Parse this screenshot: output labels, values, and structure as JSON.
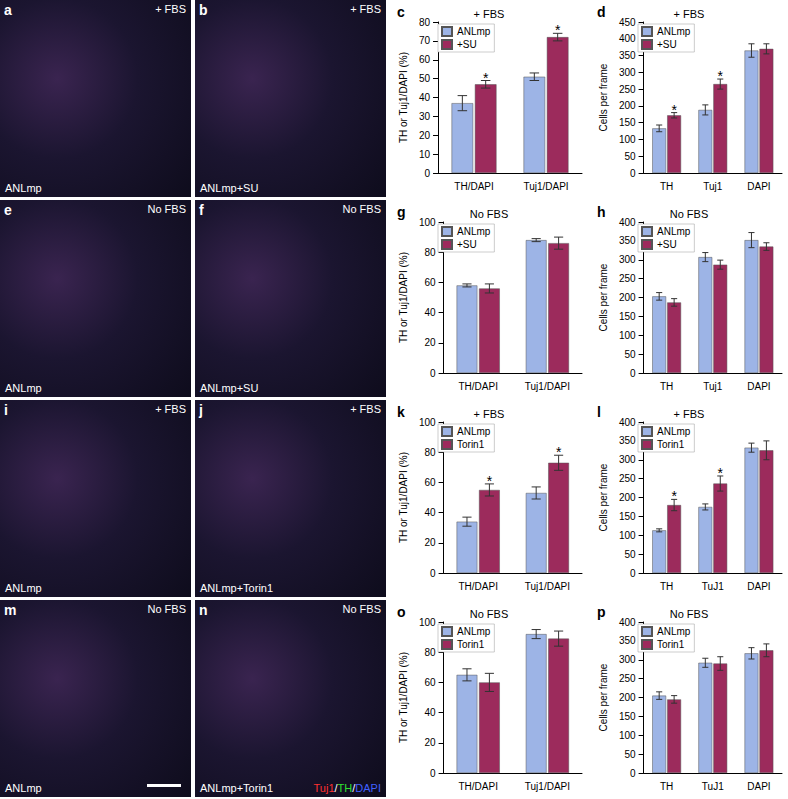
{
  "images": [
    {
      "panel": "a",
      "condition": "+ FBS",
      "label": "ANLmp"
    },
    {
      "panel": "b",
      "condition": "+ FBS",
      "label": "ANLmp+SU"
    },
    {
      "panel": "e",
      "condition": "No FBS",
      "label": "ANLmp"
    },
    {
      "panel": "f",
      "condition": "No FBS",
      "label": "ANLmp+SU"
    },
    {
      "panel": "i",
      "condition": "+ FBS",
      "label": "ANLmp"
    },
    {
      "panel": "j",
      "condition": "+ FBS",
      "label": "ANLmp+Torin1"
    },
    {
      "panel": "m",
      "condition": "No FBS",
      "label": "ANLmp",
      "scale_bar": true
    },
    {
      "panel": "n",
      "condition": "No FBS",
      "label": "ANLmp+Torin1",
      "stain_legend": [
        {
          "text": "Tuj1",
          "color": "#ff3030"
        },
        {
          "text": "/",
          "color": "#ffffff"
        },
        {
          "text": "TH",
          "color": "#30e030"
        },
        {
          "text": "/",
          "color": "#ffffff"
        },
        {
          "text": "DAPI",
          "color": "#4060ff"
        }
      ]
    }
  ],
  "chart_data": [
    {
      "panel": "c",
      "type": "bar",
      "title": "+ FBS",
      "y_label": "TH or Tuj1/DAPI (%)",
      "categories": [
        "TH/DAPI",
        "Tuj1/DAPI"
      ],
      "series": [
        {
          "name": "ANLmp",
          "color": "#9db4e6",
          "values": [
            37,
            51
          ],
          "errors": [
            4,
            2
          ],
          "annotations": [
            null,
            null
          ]
        },
        {
          "name": "+SU",
          "color": "#9c2b5c",
          "values": [
            47,
            72
          ],
          "errors": [
            2,
            2
          ],
          "annotations": [
            "*",
            "*"
          ]
        }
      ],
      "ylim": [
        0,
        80
      ],
      "yticks": [
        0,
        10,
        20,
        30,
        40,
        50,
        60,
        70,
        80
      ],
      "legend": "upper left",
      "grid": false
    },
    {
      "panel": "d",
      "type": "bar",
      "title": "+ FBS",
      "y_label": "Cells per frame",
      "categories": [
        "TH",
        "Tuj1",
        "DAPI"
      ],
      "series": [
        {
          "name": "ANLmp",
          "color": "#9db4e6",
          "values": [
            133,
            188,
            365
          ],
          "errors": [
            10,
            15,
            20
          ],
          "annotations": [
            null,
            null,
            null
          ]
        },
        {
          "name": "+SU",
          "color": "#9c2b5c",
          "values": [
            172,
            265,
            370
          ],
          "errors": [
            8,
            15,
            15
          ],
          "annotations": [
            "*",
            "*",
            null
          ]
        }
      ],
      "ylim": [
        0,
        450
      ],
      "yticks": [
        0,
        50,
        100,
        150,
        200,
        250,
        300,
        350,
        400,
        450
      ],
      "legend": "upper left",
      "grid": false
    },
    {
      "panel": "g",
      "type": "bar",
      "title": "No FBS",
      "y_label": "TH or Tuj1/DAPI (%)",
      "categories": [
        "TH/DAPI",
        "Tuj1/DAPI"
      ],
      "series": [
        {
          "name": "ANLmp",
          "color": "#9db4e6",
          "values": [
            58,
            88
          ],
          "errors": [
            1,
            1
          ],
          "annotations": [
            null,
            null
          ]
        },
        {
          "name": "+SU",
          "color": "#9c2b5c",
          "values": [
            56,
            86
          ],
          "errors": [
            3,
            4
          ],
          "annotations": [
            null,
            null
          ]
        }
      ],
      "ylim": [
        0,
        100
      ],
      "yticks": [
        0,
        20,
        40,
        60,
        80,
        100
      ],
      "legend": "upper left",
      "grid": false
    },
    {
      "panel": "h",
      "type": "bar",
      "title": "No FBS",
      "y_label": "Cells per frame",
      "categories": [
        "TH",
        "Tuj1",
        "DAPI"
      ],
      "series": [
        {
          "name": "ANLmp",
          "color": "#9db4e6",
          "values": [
            203,
            307,
            352
          ],
          "errors": [
            10,
            12,
            20
          ],
          "annotations": [
            null,
            null,
            null
          ]
        },
        {
          "name": "+SU",
          "color": "#9c2b5c",
          "values": [
            187,
            287,
            335
          ],
          "errors": [
            10,
            12,
            10
          ],
          "annotations": [
            null,
            null,
            null
          ]
        }
      ],
      "ylim": [
        0,
        400
      ],
      "yticks": [
        0,
        50,
        100,
        150,
        200,
        250,
        300,
        350,
        400
      ],
      "legend": "upper left",
      "grid": false
    },
    {
      "panel": "k",
      "type": "bar",
      "title": "+ FBS",
      "y_label": "TH or Tuj1/DAPI (%)",
      "categories": [
        "TH/DAPI",
        "Tuj1/DAPI"
      ],
      "series": [
        {
          "name": "ANLmp",
          "color": "#9db4e6",
          "values": [
            34,
            53
          ],
          "errors": [
            3,
            4
          ],
          "annotations": [
            null,
            null
          ]
        },
        {
          "name": "Torin1",
          "color": "#9c2b5c",
          "values": [
            55,
            73
          ],
          "errors": [
            4,
            5
          ],
          "annotations": [
            "*",
            "*"
          ]
        }
      ],
      "ylim": [
        0,
        100
      ],
      "yticks": [
        0,
        20,
        40,
        60,
        80,
        100
      ],
      "legend": "upper left",
      "grid": false
    },
    {
      "panel": "l",
      "type": "bar",
      "title": "+ FBS",
      "y_label": "Cells per frame",
      "categories": [
        "TH",
        "TuJ1",
        "DAPI"
      ],
      "series": [
        {
          "name": "ANLmp",
          "color": "#9db4e6",
          "values": [
            113,
            175,
            332
          ],
          "errors": [
            4,
            8,
            12
          ],
          "annotations": [
            null,
            null,
            null
          ]
        },
        {
          "name": "Torin1",
          "color": "#9c2b5c",
          "values": [
            180,
            237,
            325
          ],
          "errors": [
            15,
            20,
            25
          ],
          "annotations": [
            "*",
            "*",
            null
          ]
        }
      ],
      "ylim": [
        0,
        400
      ],
      "yticks": [
        0,
        50,
        100,
        150,
        200,
        250,
        300,
        350,
        400
      ],
      "legend": "upper left",
      "grid": false
    },
    {
      "panel": "o",
      "type": "bar",
      "title": "No FBS",
      "y_label": "TH or Tuj1/DAPI (%)",
      "categories": [
        "TH/DAPI",
        "Tuj1/DAPI"
      ],
      "series": [
        {
          "name": "ANLmp",
          "color": "#9db4e6",
          "values": [
            65,
            92
          ],
          "errors": [
            4,
            3
          ],
          "annotations": [
            null,
            null
          ]
        },
        {
          "name": "Torin1",
          "color": "#9c2b5c",
          "values": [
            60,
            89
          ],
          "errors": [
            6,
            5
          ],
          "annotations": [
            null,
            null
          ]
        }
      ],
      "ylim": [
        0,
        100
      ],
      "yticks": [
        0,
        20,
        40,
        60,
        80,
        100
      ],
      "legend": "upper left",
      "grid": false
    },
    {
      "panel": "p",
      "type": "bar",
      "title": "No FBS",
      "y_label": "Cells per frame",
      "categories": [
        "TH",
        "TuJ1",
        "DAPI"
      ],
      "series": [
        {
          "name": "ANLmp",
          "color": "#9db4e6",
          "values": [
            205,
            292,
            317
          ],
          "errors": [
            10,
            12,
            15
          ],
          "annotations": [
            null,
            null,
            null
          ]
        },
        {
          "name": "Torin1",
          "color": "#9c2b5c",
          "values": [
            195,
            290,
            325
          ],
          "errors": [
            10,
            18,
            17
          ],
          "annotations": [
            null,
            null,
            null
          ]
        }
      ],
      "ylim": [
        0,
        400
      ],
      "yticks": [
        0,
        50,
        100,
        150,
        200,
        250,
        300,
        350,
        400
      ],
      "legend": "upper left",
      "grid": false
    }
  ]
}
